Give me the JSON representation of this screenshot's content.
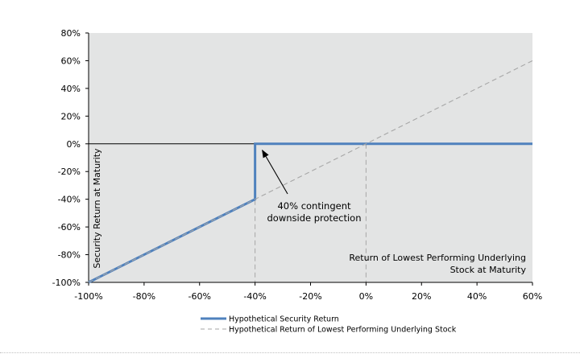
{
  "chart_data": {
    "type": "line",
    "xlabel": "Return of Lowest Performing Underlying Stock at Maturity",
    "ylabel": "Security Return at Maturity",
    "xlim": [
      -100,
      60
    ],
    "ylim": [
      -100,
      80
    ],
    "x_ticks": [
      -100,
      -80,
      -60,
      -40,
      -20,
      0,
      20,
      40,
      60
    ],
    "y_ticks": [
      -100,
      -80,
      -60,
      -40,
      -20,
      0,
      20,
      40,
      60,
      80
    ],
    "x_tick_labels": [
      "-100%",
      "-80%",
      "-60%",
      "-40%",
      "-20%",
      "0%",
      "20%",
      "40%",
      "60%"
    ],
    "y_tick_labels": [
      "-100%",
      "-80%",
      "-60%",
      "-40%",
      "-20%",
      "0%",
      "20%",
      "40%",
      "60%",
      "80%"
    ],
    "grid": false,
    "legend_position": "bottom",
    "colors": {
      "plot_background": "#e3e4e4",
      "security_line": "#4f81bd",
      "underlying_line": "#a6a6a6",
      "zero_line": "#000000",
      "reference_lines": "#a6a6a6"
    },
    "series": [
      {
        "name": "Hypothetical Security Return",
        "style": "solid",
        "x": [
          -100,
          -40,
          -40,
          60
        ],
        "y": [
          -100,
          -40,
          0,
          0
        ]
      },
      {
        "name": "Hypothetical Return of Lowest Performing Underlying Stock",
        "style": "dashed",
        "x": [
          -100,
          60
        ],
        "y": [
          -100,
          60
        ]
      }
    ],
    "reference_lines": [
      {
        "axis": "x",
        "value": -40,
        "style": "dashed"
      },
      {
        "axis": "x",
        "value": 0,
        "style": "dashed"
      },
      {
        "axis": "y",
        "value": 0,
        "style": "solid"
      }
    ],
    "annotations": [
      {
        "lines": [
          "40% contingent",
          "downside protection"
        ],
        "arrow_to": {
          "x": -40,
          "y": 0
        }
      }
    ]
  }
}
